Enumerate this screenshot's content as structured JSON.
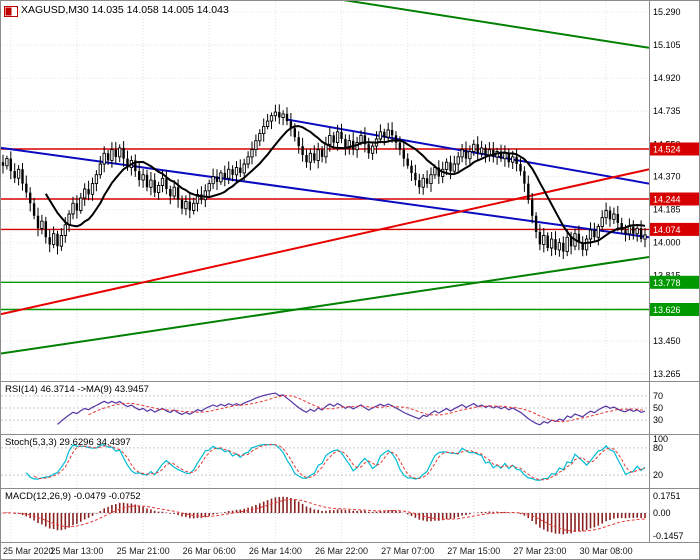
{
  "window": {
    "title": "XAGUSD,M30 14.035 14.058 14.005 14.043"
  },
  "chart_data": {
    "type": "candlestick",
    "symbol": "XAGUSD",
    "timeframe": "M30",
    "ohlc": {
      "open": "14.035",
      "high": "14.058",
      "low": "14.005",
      "close": "14.043"
    },
    "y_ticks": [
      15.29,
      15.105,
      14.92,
      14.735,
      14.55,
      14.37,
      14.185,
      14.0,
      13.815,
      13.63,
      13.45,
      13.265
    ],
    "x_labels": [
      {
        "text": "25 Mar 2020",
        "i": 2
      },
      {
        "text": "25 Mar 13:00",
        "i": 19
      },
      {
        "text": "25 Mar 21:00",
        "i": 36
      },
      {
        "text": "26 Mar 06:00",
        "i": 53
      },
      {
        "text": "26 Mar 14:00",
        "i": 70
      },
      {
        "text": "26 Mar 22:00",
        "i": 87
      },
      {
        "text": "27 Mar 07:00",
        "i": 104
      },
      {
        "text": "27 Mar 15:00",
        "i": 121
      },
      {
        "text": "27 Mar 23:00",
        "i": 138
      },
      {
        "text": "30 Mar 08:00",
        "i": 155
      }
    ],
    "closes": [
      14.43,
      14.47,
      14.4,
      14.36,
      14.41,
      14.33,
      14.28,
      14.22,
      14.15,
      14.08,
      14.12,
      14.03,
      13.99,
      14.05,
      13.98,
      14.04,
      14.1,
      14.16,
      14.22,
      14.18,
      14.25,
      14.3,
      14.27,
      14.33,
      14.38,
      14.44,
      14.5,
      14.46,
      14.52,
      14.48,
      14.53,
      14.47,
      14.42,
      14.46,
      14.4,
      14.35,
      14.38,
      14.31,
      14.35,
      14.28,
      14.32,
      14.36,
      14.3,
      14.26,
      14.31,
      14.24,
      14.19,
      14.23,
      14.18,
      14.22,
      14.27,
      14.24,
      14.29,
      14.33,
      14.37,
      14.34,
      14.39,
      14.36,
      14.41,
      14.38,
      14.42,
      14.39,
      14.44,
      14.48,
      14.52,
      14.57,
      14.61,
      14.65,
      14.68,
      14.71,
      14.73,
      14.7,
      14.72,
      14.68,
      14.64,
      14.59,
      14.54,
      14.49,
      14.45,
      14.5,
      14.46,
      14.52,
      14.48,
      14.55,
      14.6,
      14.56,
      14.62,
      14.58,
      14.53,
      14.57,
      14.52,
      14.56,
      14.6,
      14.55,
      14.5,
      14.54,
      14.58,
      14.62,
      14.59,
      14.63,
      14.6,
      14.56,
      14.52,
      14.47,
      14.43,
      14.39,
      14.35,
      14.31,
      14.36,
      14.33,
      14.38,
      14.42,
      14.37,
      14.41,
      14.45,
      14.4,
      14.44,
      14.48,
      14.52,
      14.47,
      14.51,
      14.55,
      14.5,
      14.53,
      14.49,
      14.52,
      14.48,
      14.51,
      14.47,
      14.5,
      14.45,
      14.48,
      14.44,
      14.4,
      14.33,
      14.24,
      14.15,
      14.06,
      13.99,
      14.04,
      13.97,
      14.02,
      13.96,
      14.0,
      13.95,
      14.03,
      13.98,
      14.05,
      14.0,
      13.96,
      14.02,
      14.07,
      14.03,
      14.09,
      14.14,
      14.18,
      14.13,
      14.16,
      14.11,
      14.07,
      14.05,
      14.09,
      14.05,
      14.08,
      14.02,
      14.043
    ],
    "levels": [
      {
        "price": 14.524,
        "label": "14.524",
        "color": "#d60000"
      },
      {
        "price": 14.244,
        "label": "14.244",
        "color": "#d60000"
      },
      {
        "price": 14.074,
        "label": "14.074",
        "color": "#d60000"
      },
      {
        "price": 13.778,
        "label": "13.778",
        "color": "#009a00"
      },
      {
        "price": 13.626,
        "label": "13.626",
        "color": "#009a00"
      }
    ],
    "trendlines": [
      {
        "name": "upper-channel-green",
        "x1": 0.4,
        "p1": 15.43,
        "x2": 1.0,
        "p2": 15.09,
        "color": "#008000",
        "width": 2
      },
      {
        "name": "lower-support-green",
        "x1": 0.0,
        "p1": 13.38,
        "x2": 1.0,
        "p2": 13.92,
        "color": "#008000",
        "width": 2
      },
      {
        "name": "descending-resistance-blue-long",
        "x1": 0.0,
        "p1": 14.53,
        "x2": 1.0,
        "p2": 14.03,
        "color": "#0a0ac0",
        "width": 2
      },
      {
        "name": "descending-resistance-blue-short",
        "x1": 0.44,
        "p1": 14.69,
        "x2": 1.0,
        "p2": 14.33,
        "color": "#0a0ac0",
        "width": 2
      },
      {
        "name": "ascending-trend-red",
        "x1": 0.0,
        "p1": 13.6,
        "x2": 1.0,
        "p2": 14.41,
        "color": "#e80000",
        "width": 2
      }
    ],
    "moving_average": {
      "period": 12,
      "color": "#000000"
    },
    "indicators": [
      {
        "name": "RSI",
        "label": "RSI(14) 46.3714 ->MA(9) 43.9457",
        "value": "46.3714",
        "ma_value": "43.9457",
        "levels": [
          70,
          50,
          30
        ],
        "color": "#5534a5",
        "signal_color": "#e53935"
      },
      {
        "name": "Stochastic",
        "label": "Stoch(5,3,3) 29.6296 34.4397",
        "value": "29.6296",
        "signal_value": "34.4397",
        "levels": [
          80,
          20
        ],
        "scale_labels": [
          {
            "text": "100",
            "v": 100
          },
          {
            "text": "80",
            "v": 80
          },
          {
            "text": "20",
            "v": 20
          }
        ],
        "color": "#00bcd4",
        "signal_color": "#e53935"
      },
      {
        "name": "MACD",
        "label": "MACD(12,26,9) -0.0479 -0.0752",
        "value": "-0.0479",
        "signal_value": "-0.0752",
        "scale_labels": [
          "0.1751",
          "0.00",
          "-0.1457"
        ],
        "color": "#8b2222",
        "signal_color": "#e53935"
      }
    ],
    "style": {
      "candle_color": "#000000",
      "grid_color": "#e2e2e8",
      "panel_border_color": "#8c8c8c",
      "badge_text_color": "#ffffff"
    }
  }
}
